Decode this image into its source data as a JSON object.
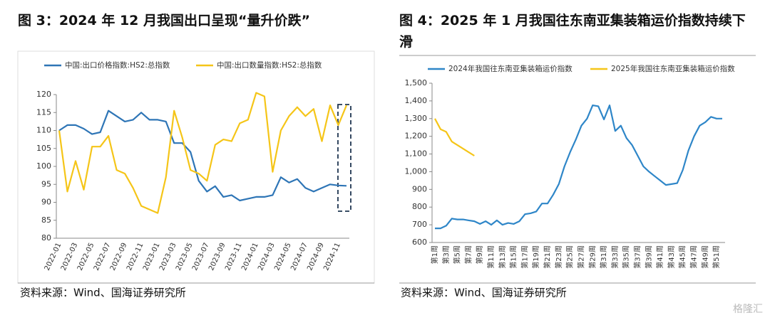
{
  "chart_data": [
    {
      "type": "line",
      "title": "图 3：2024 年 12 月我国出口呈现“量升价跌”",
      "categories": [
        "2022-01",
        null,
        "2022-03",
        null,
        "2022-05",
        null,
        "2022-07",
        null,
        "2022-09",
        null,
        "2022-11",
        null,
        "2023-01",
        null,
        "2023-03",
        null,
        "2023-05",
        null,
        "2023-07",
        null,
        "2023-09",
        null,
        "2023-11",
        null,
        "2024-01",
        null,
        "2024-03",
        null,
        "2024-05",
        null,
        "2024-07",
        null,
        "2024-09",
        null,
        "2024-11",
        null
      ],
      "series": [
        {
          "name": "中国:出口价格指数:HS2:总指数",
          "color": "#2e75b6",
          "values": [
            110,
            111.5,
            111.5,
            110.5,
            109,
            109.5,
            115.5,
            114,
            112.5,
            113,
            115,
            113,
            113,
            112.5,
            106.5,
            106.5,
            104,
            96,
            93,
            94.5,
            91.5,
            92,
            90.5,
            91,
            91.5,
            91.5,
            92,
            97,
            95.5,
            96.5,
            94,
            93,
            94,
            95,
            94.7,
            94.6
          ]
        },
        {
          "name": "中国:出口数量指数:HS2:总指数",
          "color": "#f5c518",
          "values": [
            110,
            93,
            101.5,
            93.5,
            105.5,
            105.5,
            108.5,
            99,
            98,
            94,
            89,
            88,
            87,
            97,
            115.5,
            108,
            99,
            98,
            96,
            106,
            107.5,
            107,
            112,
            113,
            120.5,
            119.5,
            98.5,
            110,
            114,
            116.5,
            114,
            116,
            107,
            117,
            111.5,
            117
          ]
        }
      ],
      "ylim": [
        80,
        120
      ],
      "yticks": [
        80,
        85,
        90,
        95,
        100,
        105,
        110,
        115,
        120
      ],
      "source": "资料来源：Wind、国海证券研究所"
    },
    {
      "type": "line",
      "title": "图 4：2025 年 1 月我国往东南亚集装箱运价指数持续下滑",
      "categories": [
        "第1周",
        null,
        "第3周",
        null,
        "第5周",
        null,
        "第7周",
        null,
        "第9周",
        null,
        "第11周",
        null,
        "第13周",
        null,
        "第15周",
        null,
        "第17周",
        null,
        "第19周",
        null,
        "第21周",
        null,
        "第23周",
        null,
        "第25周",
        null,
        "第27周",
        null,
        "第29周",
        null,
        "第31周",
        null,
        "第33周",
        null,
        "第35周",
        null,
        "第37周",
        null,
        "第39周",
        null,
        "第41周",
        null,
        "第43周",
        null,
        "第45周",
        null,
        "第47周",
        null,
        "第49周",
        null,
        "第51周",
        null
      ],
      "series": [
        {
          "name": "2024年我国往东南亚集装箱运价指数",
          "color": "#2e86c8",
          "values": [
            680,
            680,
            695,
            735,
            730,
            730,
            725,
            720,
            705,
            720,
            700,
            725,
            700,
            710,
            705,
            720,
            760,
            765,
            775,
            820,
            820,
            870,
            930,
            1030,
            1110,
            1180,
            1260,
            1300,
            1375,
            1370,
            1295,
            1375,
            1230,
            1260,
            1190,
            1150,
            1090,
            1030,
            1000,
            975,
            950,
            925,
            930,
            935,
            1010,
            1120,
            1200,
            1260,
            1280,
            1310,
            1300,
            1300
          ]
        },
        {
          "name": "2025年我国往东南亚集装箱运价指数",
          "color": "#f5c518",
          "values": [
            1300,
            1240,
            1225,
            1170,
            1150,
            1130,
            1110,
            1090,
            null,
            null,
            null,
            null,
            null,
            null,
            null,
            null,
            null,
            null,
            null,
            null,
            null,
            null,
            null,
            null,
            null,
            null,
            null,
            null,
            null,
            null,
            null,
            null,
            null,
            null,
            null,
            null,
            null,
            null,
            null,
            null,
            null,
            null,
            null,
            null,
            null,
            null,
            null,
            null,
            null,
            null,
            null,
            null
          ]
        }
      ],
      "ylim": [
        600,
        1500
      ],
      "yticks": [
        600,
        700,
        800,
        900,
        {
          "value": 1000,
          "label": "1,000"
        },
        {
          "value": 1100,
          "label": "1,100"
        },
        {
          "value": 1200,
          "label": "1,200"
        },
        {
          "value": 1300,
          "label": "1,300"
        },
        {
          "value": 1400,
          "label": "1,400"
        },
        {
          "value": 1500,
          "label": "1,500"
        }
      ],
      "source": "资料来源：Wind、国海证券研究所"
    }
  ],
  "watermark": "格隆汇"
}
